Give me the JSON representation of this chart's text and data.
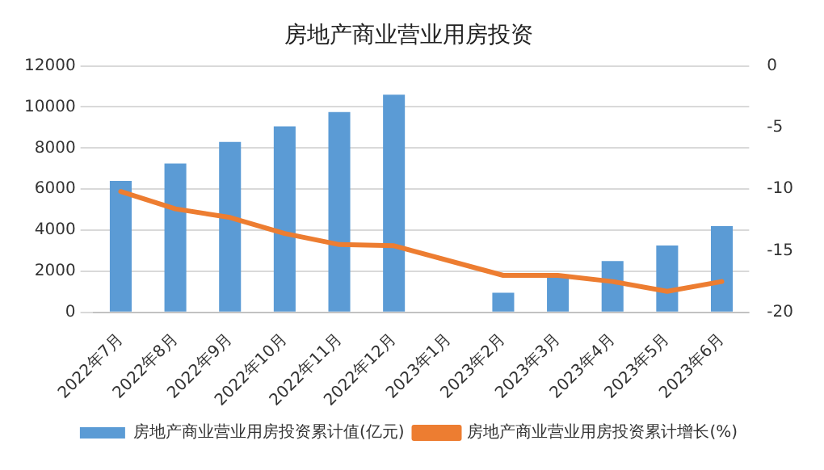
{
  "chart_data": {
    "type": "bar",
    "title": "房地产商业营业用房投资",
    "categories": [
      "2022年7月",
      "2022年8月",
      "2022年9月",
      "2022年10月",
      "2022年11月",
      "2022年12月",
      "2023年1月",
      "2023年2月",
      "2023年3月",
      "2023年4月",
      "2023年5月",
      "2023年6月"
    ],
    "series": [
      {
        "name": "房地产商业营业用房投资累计值(亿元)",
        "color": "#5b9bd5",
        "values": [
          6400,
          7250,
          8300,
          9050,
          9750,
          10600,
          null,
          950,
          1800,
          2500,
          3250,
          4200
        ]
      },
      {
        "name": "房地产商业营业用房投资累计增长(%)",
        "type": "line",
        "axis": "y2",
        "color": "#ed7d31",
        "values": [
          -10.2,
          -11.6,
          -12.3,
          -13.6,
          -14.5,
          -14.6,
          null,
          -17.0,
          -17.0,
          -17.5,
          -18.3,
          -17.5
        ]
      }
    ],
    "ylim": [
      0,
      12000
    ],
    "yticks": [
      0,
      2000,
      4000,
      6000,
      8000,
      10000,
      12000
    ],
    "y2lim": [
      -20,
      0
    ],
    "y2ticks": [
      -20,
      -15,
      -10,
      -5,
      0
    ],
    "grid": "y",
    "legend": "bottom",
    "marker": "none",
    "line_style": "solid"
  }
}
